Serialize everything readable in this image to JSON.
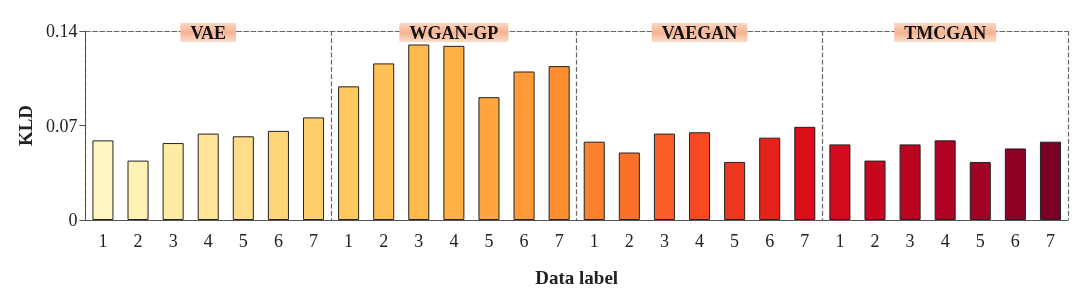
{
  "chart_data": {
    "type": "bar",
    "xlabel": "Data label",
    "ylabel": "KLD",
    "categories": [
      "1",
      "2",
      "3",
      "4",
      "5",
      "6",
      "7",
      "1",
      "2",
      "3",
      "4",
      "5",
      "6",
      "7",
      "1",
      "2",
      "3",
      "4",
      "5",
      "6",
      "7",
      "1",
      "2",
      "3",
      "4",
      "5",
      "6",
      "7"
    ],
    "values": [
      0.059,
      0.044,
      0.057,
      0.064,
      0.062,
      0.066,
      0.076,
      0.099,
      0.116,
      0.13,
      0.129,
      0.091,
      0.11,
      0.114,
      0.058,
      0.05,
      0.064,
      0.065,
      0.043,
      0.061,
      0.069,
      0.056,
      0.044,
      0.056,
      0.059,
      0.043,
      0.053,
      0.058
    ],
    "colors": [
      "#fff5c0",
      "#fff0b4",
      "#ffeaa6",
      "#ffe497",
      "#ffdd88",
      "#fed679",
      "#fece6a",
      "#fec85f",
      "#fec155",
      "#feba4c",
      "#feb043",
      "#fea53d",
      "#fe9a37",
      "#fd8f31",
      "#fd812d",
      "#fc7129",
      "#fc5f26",
      "#f94923",
      "#ee3520",
      "#e5231c",
      "#db0d18",
      "#d20a1c",
      "#c8061e",
      "#bc0420",
      "#b00323",
      "#a00224",
      "#8d0125",
      "#7a0026"
    ],
    "annotations": [
      "VAE",
      "WGAN-GP",
      "VAEGAN",
      "TMCGAN"
    ],
    "ylim": [
      0,
      0.14
    ],
    "yticks": [
      0,
      0.07,
      0.14
    ],
    "grid": false
  }
}
